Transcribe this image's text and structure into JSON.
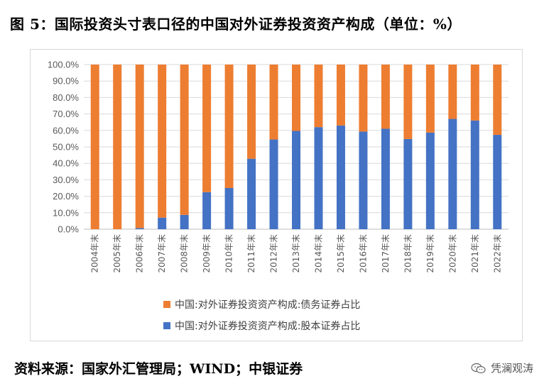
{
  "title": "图 5：国际投资头寸表口径的中国对外证券投资资产构成（单位：%）",
  "source": "资料来源：国家外汇管理局；WIND；中银证券",
  "watermark": {
    "text": "凭澜观涛",
    "icon": "wechat-icon"
  },
  "colors": {
    "debt": "#ED7D31",
    "equity": "#4472C4",
    "grid": "#D9D9D9",
    "axis": "#BFBFBF"
  },
  "chart_data": {
    "type": "bar",
    "stacked": true,
    "percent": true,
    "title": "图 5：国际投资头寸表口径的中国对外证券投资资产构成（单位：%）",
    "ylim": [
      0,
      100
    ],
    "yticks": [
      "0.0%",
      "10.0%",
      "20.0%",
      "30.0%",
      "40.0%",
      "50.0%",
      "60.0%",
      "70.0%",
      "80.0%",
      "90.0%",
      "100.0%"
    ],
    "categories": [
      "2004年末",
      "2005年末",
      "2006年末",
      "2007年末",
      "2008年末",
      "2009年末",
      "2010年末",
      "2011年末",
      "2012年末",
      "2013年末",
      "2014年末",
      "2015年末",
      "2016年末",
      "2017年末",
      "2018年末",
      "2019年末",
      "2020年末",
      "2021年末",
      "2022年末"
    ],
    "series": [
      {
        "name": "中国:对外证券投资资产构成:股本证券占比",
        "color": "#4472C4",
        "values": [
          0.0,
          0.0,
          0.7,
          7.0,
          8.7,
          22.5,
          25.0,
          42.8,
          54.5,
          59.7,
          62.0,
          63.0,
          59.3,
          61.0,
          54.8,
          58.7,
          67.0,
          66.0,
          57.3
        ]
      },
      {
        "name": "中国:对外证券投资资产构成:债务证券占比",
        "color": "#ED7D31",
        "values": [
          100.0,
          100.0,
          99.3,
          93.0,
          91.3,
          77.5,
          75.0,
          57.2,
          45.5,
          40.3,
          38.0,
          37.0,
          40.7,
          39.0,
          45.2,
          41.3,
          33.0,
          34.0,
          42.7
        ]
      }
    ],
    "legend": [
      {
        "label": "中国:对外证券投资资产构成:债务证券占比",
        "color": "#ED7D31"
      },
      {
        "label": "中国:对外证券投资资产构成:股本证券占比",
        "color": "#4472C4"
      }
    ],
    "legend_position": "bottom",
    "grid": true
  }
}
